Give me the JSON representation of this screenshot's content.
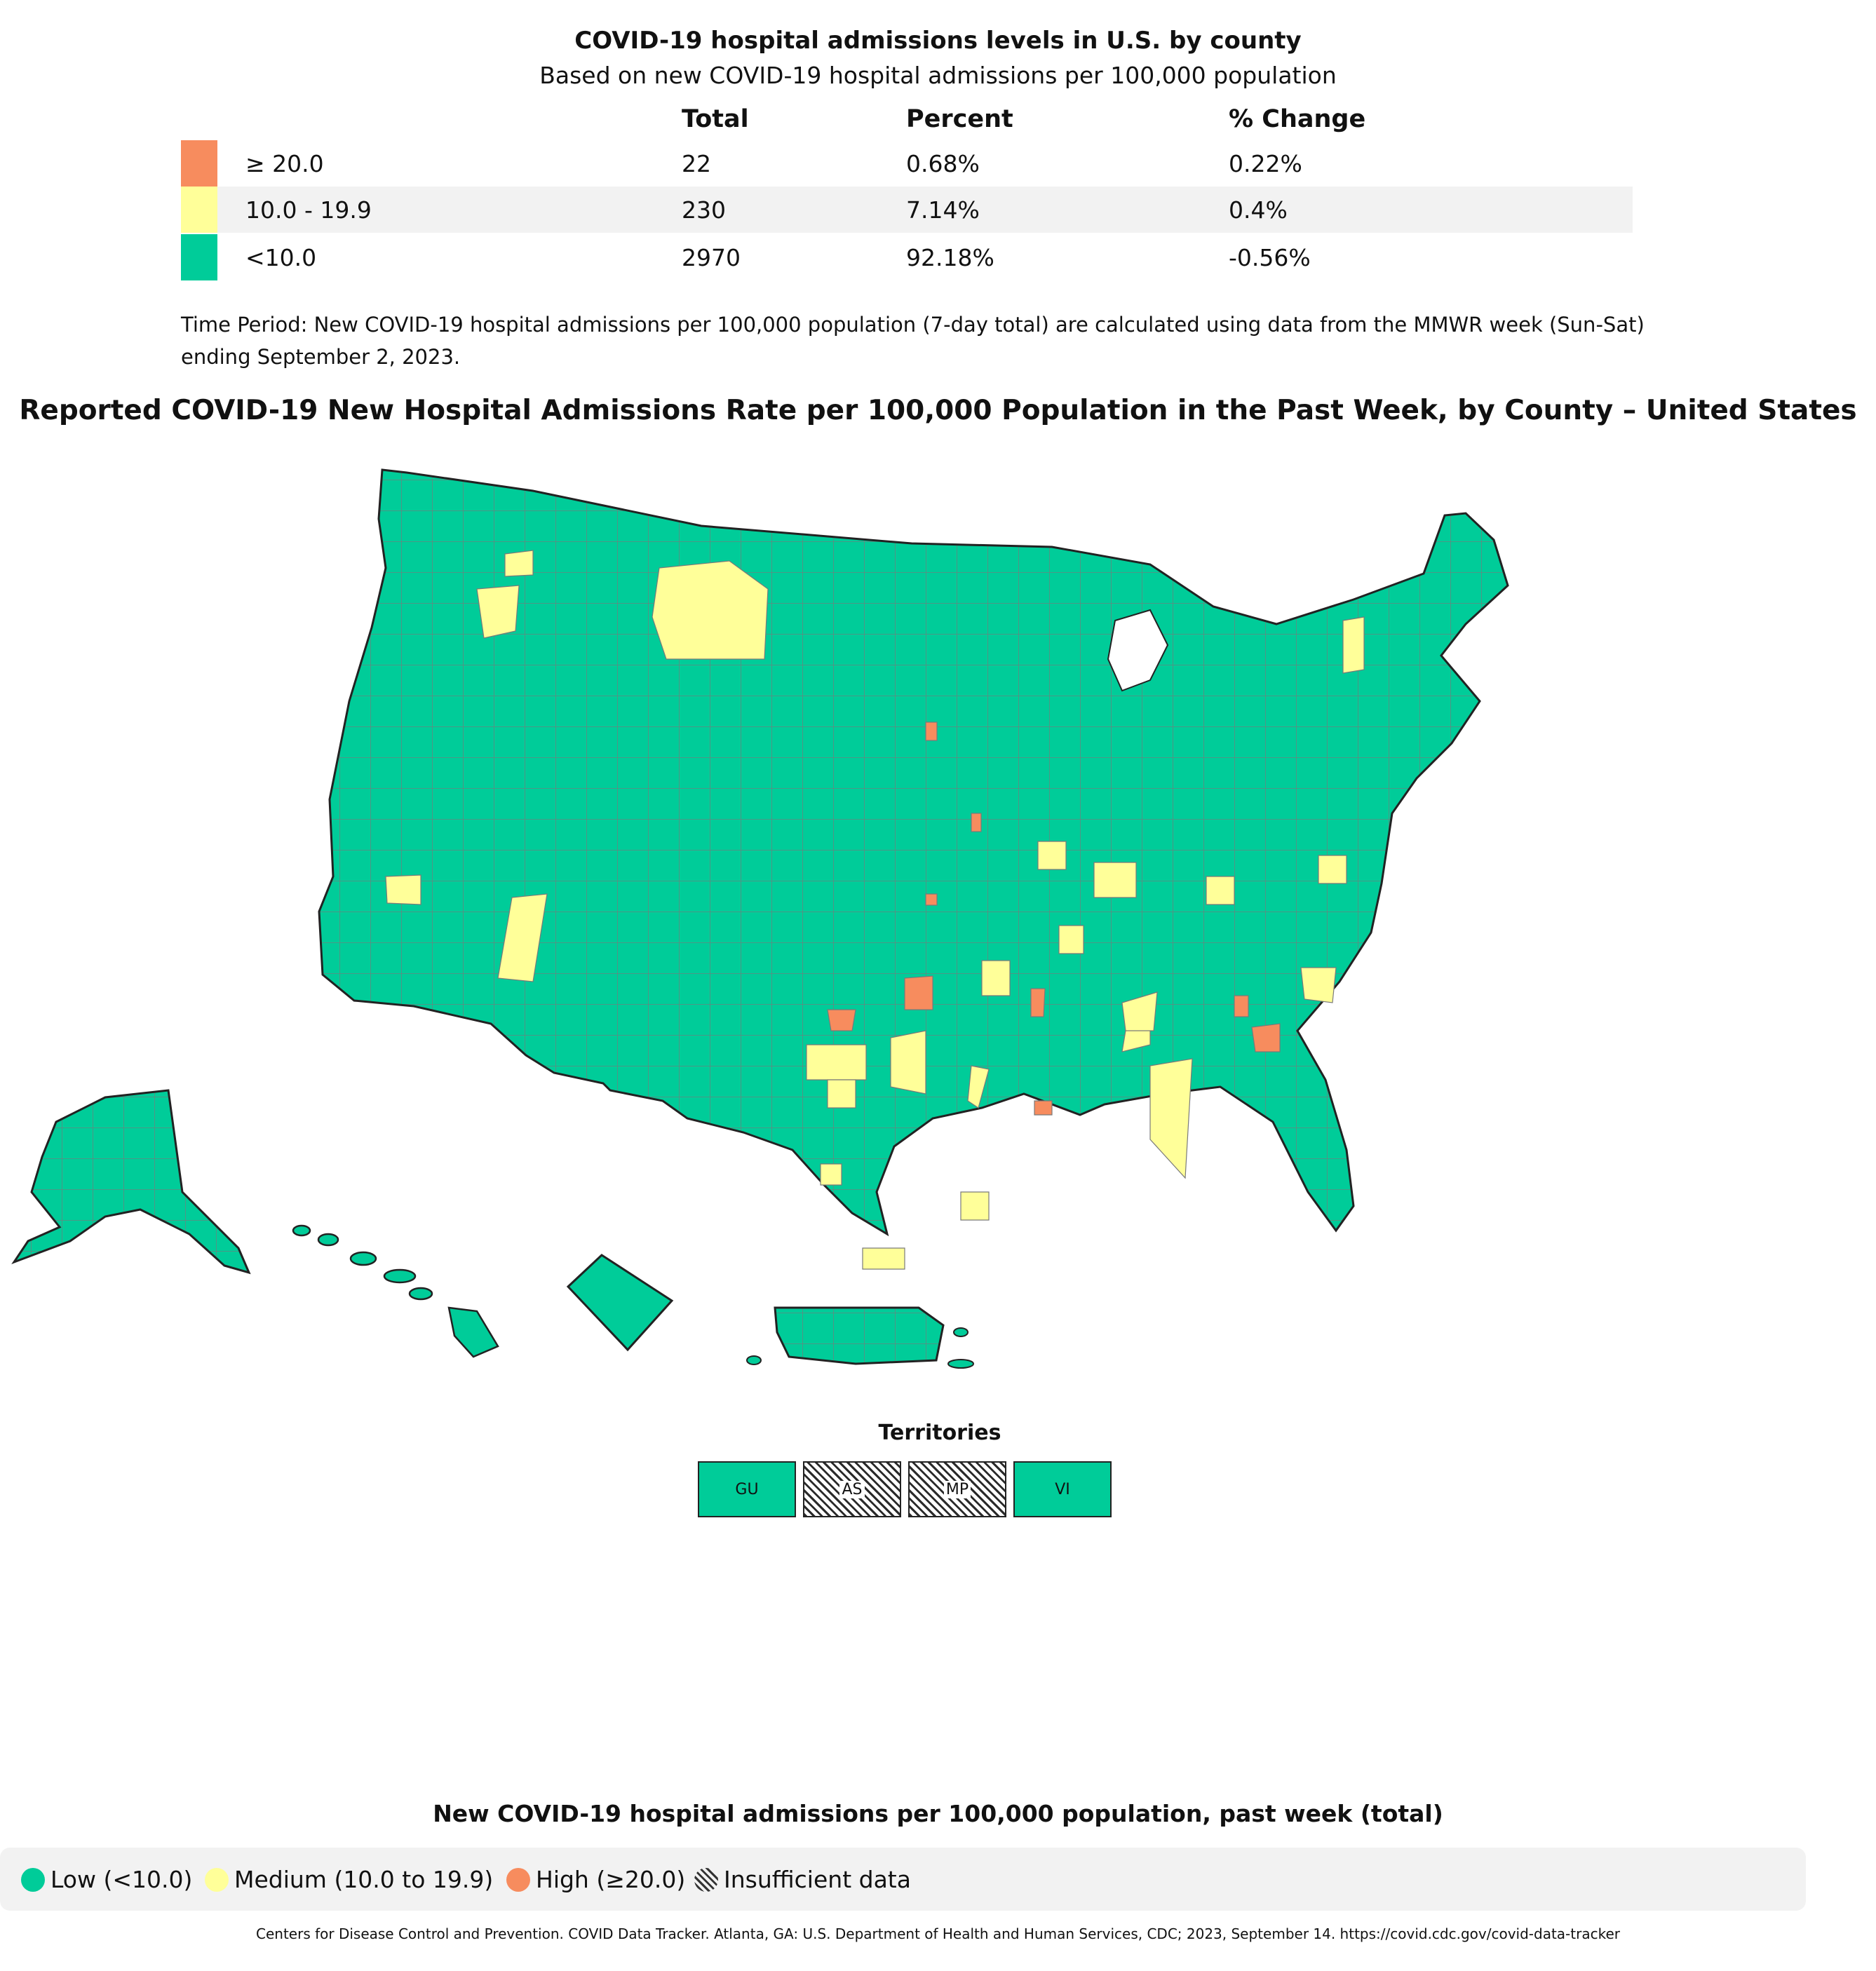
{
  "summary": {
    "title": "COVID-19 hospital admissions levels in U.S. by county",
    "subtitle": "Based on new COVID-19 hospital admissions per 100,000 population",
    "columns": [
      "Total",
      "Percent",
      "% Change"
    ],
    "rows": [
      {
        "range": "≥ 20.0",
        "total": "22",
        "percent": "0.68%",
        "change": "0.22%",
        "color": "#f78c5e"
      },
      {
        "range": "10.0 - 19.9",
        "total": "230",
        "percent": "7.14%",
        "change": "0.4%",
        "color": "#ffff99"
      },
      {
        "range": "<10.0",
        "total": "2970",
        "percent": "92.18%",
        "change": "-0.56%",
        "color": "#00cc99"
      }
    ],
    "time_note": "Time Period: New COVID-19 hospital admissions per 100,000 population (7-day total) are calculated using data from the MMWR week (Sun-Sat) ending September 2, 2023."
  },
  "map": {
    "title": "Reported COVID-19 New Hospital Admissions Rate per 100,000 Population in the Past Week, by County – United States",
    "colors": {
      "low": "#00cc99",
      "medium": "#ffff99",
      "high": "#f78c5e",
      "border": "#7a7a7a"
    }
  },
  "territories": {
    "label": "Territories",
    "items": [
      {
        "code": "GU",
        "status": "low"
      },
      {
        "code": "AS",
        "status": "insufficient"
      },
      {
        "code": "MP",
        "status": "insufficient"
      },
      {
        "code": "VI",
        "status": "low"
      }
    ]
  },
  "legend": {
    "title": "New COVID-19 hospital admissions per 100,000 population, past week (total)",
    "low": "Low (<10.0)",
    "medium": "Medium (10.0 to 19.9)",
    "high": "High (≥20.0)",
    "insufficient": "Insufficient data"
  },
  "source": "Centers for Disease Control and Prevention. COVID Data Tracker. Atlanta, GA: U.S. Department of Health and Human Services, CDC; 2023, September 14. https://covid.cdc.gov/covid-data-tracker"
}
